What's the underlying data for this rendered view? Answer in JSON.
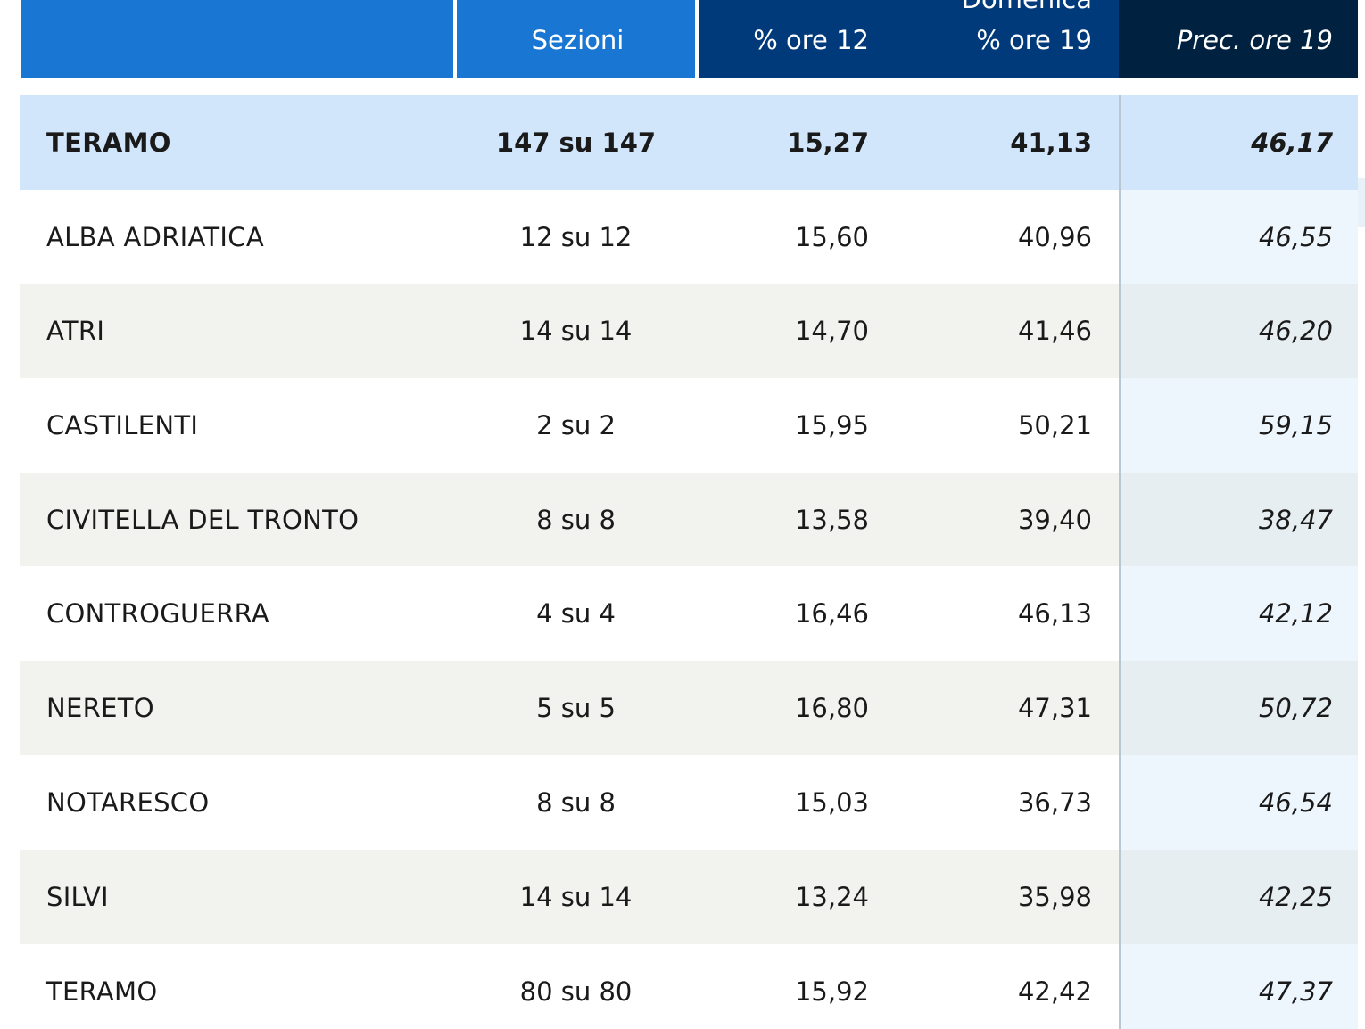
{
  "header": {
    "name": "",
    "sezioni": "Sezioni",
    "group": "Domenica",
    "ore12": "% ore 12",
    "ore19": "% ore 19",
    "prec": "Prec. ore 19"
  },
  "rows": [
    {
      "name": "TERAMO",
      "sezioni": "147 su 147",
      "ore12": "15,27",
      "ore19": "41,13",
      "prec": "46,17"
    },
    {
      "name": "ALBA ADRIATICA",
      "sezioni": "12 su 12",
      "ore12": "15,60",
      "ore19": "40,96",
      "prec": "46,55"
    },
    {
      "name": "ATRI",
      "sezioni": "14 su 14",
      "ore12": "14,70",
      "ore19": "41,46",
      "prec": "46,20"
    },
    {
      "name": "CASTILENTI",
      "sezioni": "2 su 2",
      "ore12": "15,95",
      "ore19": "50,21",
      "prec": "59,15"
    },
    {
      "name": "CIVITELLA DEL TRONTO",
      "sezioni": "8 su 8",
      "ore12": "13,58",
      "ore19": "39,40",
      "prec": "38,47"
    },
    {
      "name": "CONTROGUERRA",
      "sezioni": "4 su 4",
      "ore12": "16,46",
      "ore19": "46,13",
      "prec": "42,12"
    },
    {
      "name": "NERETO",
      "sezioni": "5 su 5",
      "ore12": "16,80",
      "ore19": "47,31",
      "prec": "50,72"
    },
    {
      "name": "NOTARESCO",
      "sezioni": "8 su 8",
      "ore12": "15,03",
      "ore19": "36,73",
      "prec": "46,54"
    },
    {
      "name": "SILVI",
      "sezioni": "14 su 14",
      "ore12": "13,24",
      "ore19": "35,98",
      "prec": "42,25"
    },
    {
      "name": "TERAMO",
      "sezioni": "80 su 80",
      "ore12": "15,92",
      "ore19": "42,42",
      "prec": "47,37"
    }
  ]
}
